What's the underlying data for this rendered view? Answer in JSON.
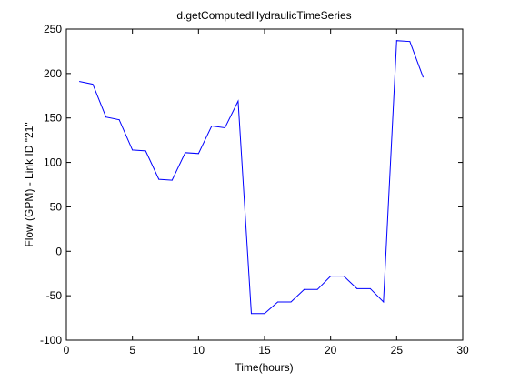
{
  "chart_data": {
    "type": "line",
    "title": "d.getComputedHydraulicTimeSeries",
    "xlabel": "Time(hours)",
    "ylabel": "Flow (GPM) - Link ID \"21\"",
    "xlim": [
      0,
      30
    ],
    "ylim": [
      -100,
      250
    ],
    "xticks": [
      0,
      5,
      10,
      15,
      20,
      25,
      30
    ],
    "yticks": [
      -100,
      -50,
      0,
      50,
      100,
      150,
      200,
      250
    ],
    "grid": false,
    "series": [
      {
        "color": "#0000ff",
        "x": [
          1,
          2,
          3,
          4,
          5,
          6,
          7,
          8,
          9,
          10,
          11,
          12,
          13,
          14,
          15,
          16,
          17,
          18,
          19,
          20,
          21,
          22,
          23,
          24,
          25,
          26,
          27
        ],
        "y": [
          191,
          188,
          151,
          148,
          114,
          113,
          81,
          80,
          111,
          110,
          141,
          139,
          169,
          -70,
          -70,
          -57,
          -57,
          -43,
          -43,
          -28,
          -28,
          -42,
          -42,
          -57,
          237,
          236,
          196
        ]
      }
    ]
  }
}
